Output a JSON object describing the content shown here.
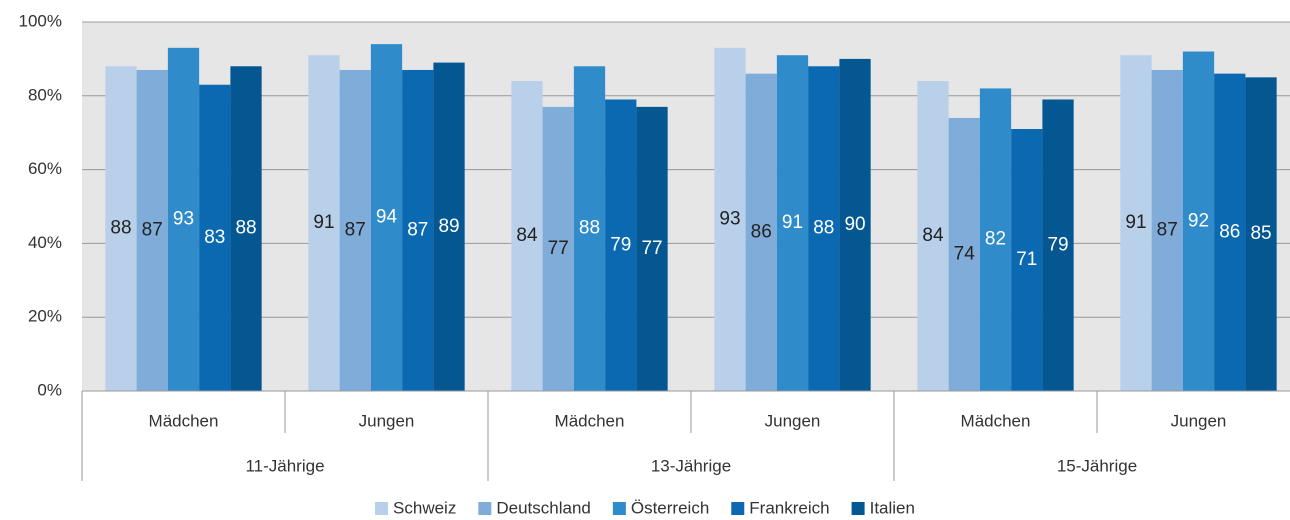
{
  "chart_data": {
    "type": "bar",
    "categories": [
      "Mädchen",
      "Jungen",
      "Mädchen",
      "Jungen",
      "Mädchen",
      "Jungen"
    ],
    "category_groups": [
      "11-Jährige",
      "13-Jährige",
      "15-Jährige"
    ],
    "series": [
      {
        "name": "Schweiz",
        "color": "#b9d0ea",
        "label_color": "#222222",
        "values": [
          88,
          91,
          84,
          93,
          84,
          91
        ]
      },
      {
        "name": "Deutschland",
        "color": "#80acd9",
        "label_color": "#222222",
        "values": [
          87,
          87,
          77,
          86,
          74,
          87
        ]
      },
      {
        "name": "Österreich",
        "color": "#2f8bca",
        "label_color": "#ffffff",
        "values": [
          93,
          94,
          88,
          91,
          82,
          92
        ]
      },
      {
        "name": "Frankreich",
        "color": "#0b69b1",
        "label_color": "#ffffff",
        "values": [
          83,
          87,
          79,
          88,
          71,
          86
        ]
      },
      {
        "name": "Italien",
        "color": "#055792",
        "label_color": "#ffffff",
        "values": [
          88,
          89,
          77,
          90,
          79,
          85
        ]
      }
    ],
    "ylim": [
      0,
      100
    ],
    "yticks": [
      {
        "value": 0,
        "label": "0%"
      },
      {
        "value": 20,
        "label": "20%"
      },
      {
        "value": 40,
        "label": "40%"
      },
      {
        "value": 60,
        "label": "60%"
      },
      {
        "value": 80,
        "label": "80%"
      },
      {
        "value": 100,
        "label": "100%"
      }
    ],
    "grid": true,
    "legend": "bottom"
  }
}
